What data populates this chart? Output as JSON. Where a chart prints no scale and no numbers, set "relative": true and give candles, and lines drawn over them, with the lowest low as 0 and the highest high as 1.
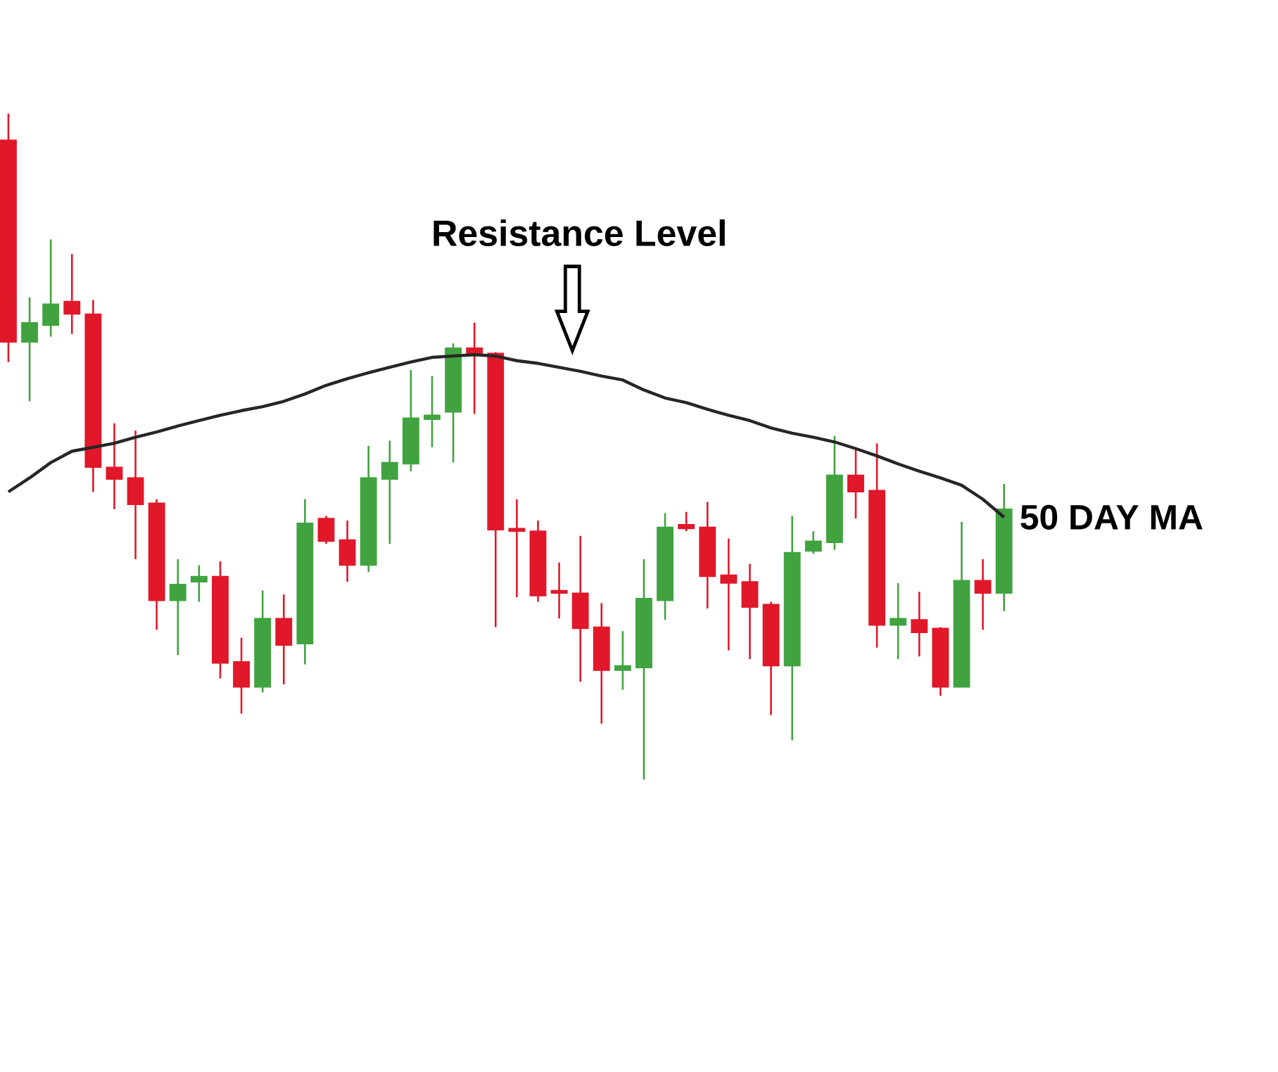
{
  "chart_data": {
    "type": "candlestick",
    "relative": true,
    "annotations": [
      "Resistance Level"
    ],
    "categories": [
      null,
      null,
      null,
      null,
      null,
      null,
      null,
      null,
      null,
      null,
      null,
      null,
      null,
      null,
      null,
      null,
      null,
      null,
      null,
      null,
      null,
      null,
      null,
      null,
      null,
      null,
      null,
      null,
      null,
      null,
      null,
      null,
      null,
      null,
      null,
      null,
      null,
      null,
      null,
      null,
      null,
      null,
      null,
      null,
      null,
      null,
      null,
      null
    ],
    "ohlc": [
      [
        0.96,
        1,
        0.627,
        0.657
      ],
      [
        0.657,
        0.724,
        0.568,
        0.686
      ],
      [
        0.682,
        0.811,
        0.665,
        0.714
      ],
      [
        0.718,
        0.789,
        0.669,
        0.699
      ],
      [
        0.699,
        0.72,
        0.432,
        0.469
      ],
      [
        0.469,
        0.535,
        0.406,
        0.451
      ],
      [
        0.453,
        0.524,
        0.331,
        0.413
      ],
      [
        0.415,
        0.421,
        0.225,
        0.269
      ],
      [
        0.269,
        0.331,
        0.187,
        0.293
      ],
      [
        0.297,
        0.322,
        0.267,
        0.305
      ],
      [
        0.305,
        0.328,
        0.152,
        0.175
      ],
      [
        0.177,
        0.213,
        0.099,
        0.139
      ],
      [
        0.139,
        0.284,
        0.131,
        0.242
      ],
      [
        0.242,
        0.278,
        0.143,
        0.202
      ],
      [
        0.204,
        0.421,
        0.173,
        0.385
      ],
      [
        0.392,
        0.396,
        0.354,
        0.358
      ],
      [
        0.36,
        0.389,
        0.297,
        0.322
      ],
      [
        0.322,
        0.501,
        0.312,
        0.453
      ],
      [
        0.451,
        0.509,
        0.354,
        0.476
      ],
      [
        0.474,
        0.615,
        0.463,
        0.543
      ],
      [
        0.541,
        0.606,
        0.499,
        0.547
      ],
      [
        0.552,
        0.655,
        0.476,
        0.648
      ],
      [
        0.648,
        0.686,
        0.549,
        0.638
      ],
      [
        0.64,
        0.642,
        0.229,
        0.375
      ],
      [
        0.377,
        0.421,
        0.274,
        0.373
      ],
      [
        0.373,
        0.389,
        0.267,
        0.276
      ],
      [
        0.284,
        0.326,
        0.242,
        0.28
      ],
      [
        0.28,
        0.366,
        0.147,
        0.227
      ],
      [
        0.229,
        0.265,
        0.084,
        0.164
      ],
      [
        0.164,
        0.223,
        0.135,
        0.171
      ],
      [
        0.168,
        0.331,
        0,
        0.272
      ],
      [
        0.269,
        0.4,
        0.24,
        0.379
      ],
      [
        0.383,
        0.402,
        0.373,
        0.377
      ],
      [
        0.379,
        0.417,
        0.257,
        0.305
      ],
      [
        0.307,
        0.362,
        0.194,
        0.295
      ],
      [
        0.297,
        0.324,
        0.181,
        0.259
      ],
      [
        0.263,
        0.267,
        0.097,
        0.171
      ],
      [
        0.171,
        0.396,
        0.059,
        0.341
      ],
      [
        0.343,
        0.373,
        0.339,
        0.358
      ],
      [
        0.356,
        0.516,
        0.345,
        0.457
      ],
      [
        0.457,
        0.495,
        0.392,
        0.432
      ],
      [
        0.434,
        0.505,
        0.198,
        0.232
      ],
      [
        0.232,
        0.295,
        0.181,
        0.242
      ],
      [
        0.24,
        0.282,
        0.185,
        0.221
      ],
      [
        0.227,
        0.229,
        0.126,
        0.139
      ],
      [
        0.139,
        0.387,
        0.139,
        0.299
      ],
      [
        0.299,
        0.331,
        0.225,
        0.28
      ],
      [
        0.28,
        0.444,
        0.253,
        0.406
      ]
    ],
    "colors": [
      "#e0182a",
      "#41a340",
      "#41a340",
      "#e0182a",
      "#e0182a",
      "#e0182a",
      "#e0182a",
      "#e0182a",
      "#41a340",
      "#41a340",
      "#e0182a",
      "#e0182a",
      "#41a340",
      "#e0182a",
      "#41a340",
      "#e0182a",
      "#e0182a",
      "#41a340",
      "#41a340",
      "#41a340",
      "#41a340",
      "#41a340",
      "#e0182a",
      "#e0182a",
      "#e0182a",
      "#e0182a",
      "#e0182a",
      "#e0182a",
      "#e0182a",
      "#41a340",
      "#41a340",
      "#41a340",
      "#e0182a",
      "#e0182a",
      "#e0182a",
      "#e0182a",
      "#e0182a",
      "#41a340",
      "#41a340",
      "#41a340",
      "#e0182a",
      "#e0182a",
      "#41a340",
      "#e0182a",
      "#e0182a",
      "#41a340",
      "#e0182a",
      "#41a340"
    ],
    "series": [
      {
        "type": "line",
        "name": "50 DAY MA",
        "color": "#262626",
        "values": [
          0.432,
          0.453,
          0.476,
          0.493,
          0.499,
          0.505,
          0.514,
          0.522,
          0.531,
          0.539,
          0.547,
          0.554,
          0.56,
          0.568,
          0.579,
          0.592,
          0.602,
          0.611,
          0.619,
          0.627,
          0.634,
          0.636,
          0.638,
          0.636,
          0.629,
          0.625,
          0.619,
          0.613,
          0.606,
          0.6,
          0.585,
          0.573,
          0.566,
          0.556,
          0.547,
          0.539,
          0.528,
          0.52,
          0.514,
          0.507,
          0.497,
          0.486,
          0.474,
          0.463,
          0.453,
          0.442,
          0.421,
          0.394
        ]
      }
    ]
  }
}
